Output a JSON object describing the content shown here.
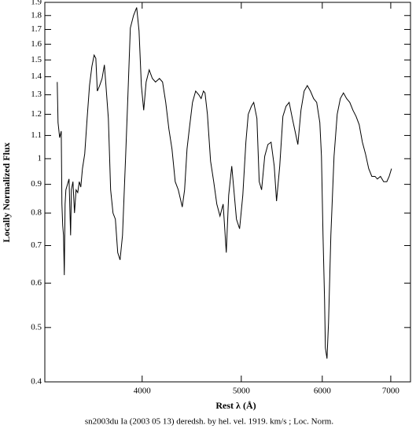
{
  "chart_data": {
    "type": "line",
    "xlabel": "Rest λ (Å)",
    "ylabel": "Locally Normalized Flux",
    "caption": "sn2003du Ia (2003 05 13) deredsh. by hel. vel.  1919. km/s ;  Loc. Norm.",
    "xscale": "log",
    "yscale": "log",
    "xlim": [
      3213,
      7318
    ],
    "ylim": [
      0.4,
      1.9
    ],
    "xticks": [
      4000,
      5000,
      6000,
      7000
    ],
    "yticks": [
      0.4,
      0.5,
      0.6,
      0.7,
      0.8,
      0.9,
      1,
      1.1,
      1.2,
      1.3,
      1.4,
      1.5,
      1.6,
      1.7,
      1.8,
      1.9
    ],
    "x": [
      3304,
      3310,
      3322,
      3334,
      3339,
      3345,
      3351,
      3357,
      3363,
      3369,
      3381,
      3393,
      3405,
      3411,
      3423,
      3435,
      3447,
      3460,
      3472,
      3484,
      3497,
      3515,
      3534,
      3553,
      3572,
      3590,
      3604,
      3616,
      3635,
      3655,
      3674,
      3687,
      3707,
      3726,
      3746,
      3766,
      3786,
      3806,
      3827,
      3854,
      3874,
      3895,
      3923,
      3951,
      3972,
      3993,
      4014,
      4036,
      4064,
      4093,
      4122,
      4159,
      4188,
      4218,
      4248,
      4278,
      4309,
      4339,
      4378,
      4401,
      4425,
      4448,
      4480,
      4512,
      4544,
      4568,
      4592,
      4608,
      4633,
      4666,
      4699,
      4732,
      4766,
      4800,
      4834,
      4860,
      4894,
      4920,
      4946,
      4981,
      5017,
      5052,
      5079,
      5115,
      5142,
      5179,
      5206,
      5234,
      5271,
      5309,
      5347,
      5385,
      5413,
      5452,
      5491,
      5530,
      5569,
      5609,
      5649,
      5679,
      5719,
      5760,
      5801,
      5842,
      5884,
      5925,
      5967,
      5989,
      6010,
      6031,
      6042,
      6064,
      6085,
      6117,
      6161,
      6205,
      6249,
      6293,
      6338,
      6383,
      6429,
      6474,
      6520,
      6567,
      6613,
      6661,
      6708,
      6756,
      6792,
      6840,
      6889,
      6938,
      6975,
      7012
    ],
    "series": [
      {
        "color": "#000000",
        "values": [
          1.37,
          1.16,
          1.09,
          1.12,
          0.83,
          0.76,
          0.73,
          0.62,
          0.83,
          0.88,
          0.9,
          0.92,
          0.73,
          0.88,
          0.91,
          0.8,
          0.88,
          0.87,
          0.91,
          0.89,
          0.96,
          1.02,
          1.18,
          1.35,
          1.46,
          1.53,
          1.51,
          1.32,
          1.35,
          1.39,
          1.47,
          1.35,
          1.18,
          0.88,
          0.8,
          0.78,
          0.68,
          0.66,
          0.73,
          1.01,
          1.3,
          1.71,
          1.8,
          1.86,
          1.69,
          1.35,
          1.22,
          1.37,
          1.44,
          1.39,
          1.37,
          1.39,
          1.37,
          1.26,
          1.13,
          1.04,
          0.91,
          0.88,
          0.82,
          0.88,
          1.04,
          1.13,
          1.26,
          1.32,
          1.3,
          1.28,
          1.32,
          1.31,
          1.2,
          0.99,
          0.91,
          0.83,
          0.79,
          0.83,
          0.68,
          0.86,
          0.97,
          0.87,
          0.78,
          0.75,
          0.86,
          1.07,
          1.2,
          1.24,
          1.26,
          1.18,
          0.91,
          0.88,
          1.01,
          1.06,
          1.07,
          0.97,
          0.84,
          0.97,
          1.19,
          1.24,
          1.26,
          1.18,
          1.11,
          1.06,
          1.22,
          1.32,
          1.35,
          1.32,
          1.28,
          1.26,
          1.16,
          1.01,
          0.73,
          0.56,
          0.46,
          0.44,
          0.51,
          0.73,
          1.01,
          1.2,
          1.28,
          1.31,
          1.28,
          1.26,
          1.22,
          1.19,
          1.15,
          1.07,
          1.02,
          0.96,
          0.93,
          0.93,
          0.92,
          0.93,
          0.91,
          0.91,
          0.93,
          0.96
        ]
      }
    ]
  }
}
